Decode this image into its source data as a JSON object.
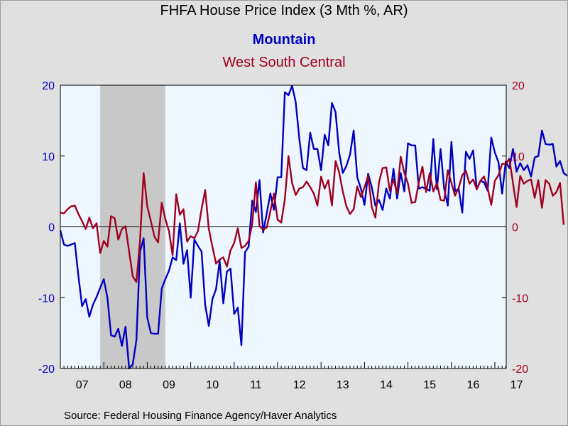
{
  "chart_data": {
    "type": "line",
    "title": "FHFA House Price Index (3 Mth %, AR)",
    "x_start_year": 2007,
    "x_tick_labels": [
      "07",
      "08",
      "09",
      "10",
      "11",
      "12",
      "13",
      "14",
      "15",
      "16",
      "17"
    ],
    "ylim": [
      -20,
      20
    ],
    "y_ticks": [
      -20,
      -10,
      0,
      10,
      20
    ],
    "recession": {
      "start": 2007.917,
      "end": 2009.417
    },
    "grid": false,
    "series": [
      {
        "name": "Mountain",
        "color": "#0000c0",
        "axis": "left",
        "values": [
          -0.5,
          -2.5,
          -2.7,
          -2.5,
          -2.3,
          -7,
          -11.2,
          -10.2,
          -12.7,
          -11,
          -9.9,
          -8.6,
          -7.4,
          -10,
          -15.3,
          -15.5,
          -14.4,
          -16.8,
          -14.1,
          -20,
          -19.4,
          -16,
          -3.5,
          -1.6,
          -12.8,
          -15,
          -15.1,
          -15.1,
          -8.7,
          -7.4,
          -6.2,
          -4.3,
          -4.7,
          0.5,
          -5.2,
          -3.3,
          -10,
          -1.8,
          -2.7,
          -3.5,
          -11,
          -14,
          -10.2,
          -8.8,
          -4.8,
          -10.8,
          -6.3,
          -5.9,
          -12.3,
          -11.4,
          -16.7,
          -3.6,
          -2.8,
          3.7,
          2.1,
          6.6,
          -0.8,
          1.9,
          4.7,
          2.4,
          7,
          7,
          19,
          18.6,
          19.9,
          17.6,
          12.4,
          8.3,
          8,
          13.3,
          11,
          11,
          8,
          13,
          11.5,
          17.5,
          16.2,
          10.5,
          7.6,
          8.6,
          10.2,
          13.6,
          7,
          5.4,
          3.1,
          7.5,
          5.6,
          3,
          3.8,
          2.4,
          5.4,
          4,
          8.2,
          4,
          7.6,
          5,
          11.8,
          11.5,
          11.5,
          5.4,
          5.6,
          5.4,
          5.1,
          12.4,
          5.3,
          11,
          5.4,
          3,
          12,
          5,
          5.4,
          2,
          10.6,
          9.6,
          10.8,
          5.3,
          6.5,
          6.3,
          5.1,
          12.6,
          10.5,
          9.1,
          4.7,
          9.2,
          8.3,
          11,
          7.8,
          9,
          8,
          8.7,
          7.1,
          9.8,
          10,
          13.6,
          11.7,
          11.6,
          11.7,
          8.5,
          9.3,
          7.6,
          7.2
        ]
      },
      {
        "name": "West South Central",
        "color": "#a00020",
        "axis": "right",
        "values": [
          2,
          1.9,
          2.5,
          2.9,
          3,
          1.8,
          0.8,
          -0.3,
          1.3,
          -0.2,
          0.5,
          -3.7,
          -2,
          -2.8,
          1.5,
          1.2,
          -1.8,
          -0.3,
          0.1,
          -3.5,
          -7,
          -7.8,
          -2,
          7.6,
          2.9,
          0.8,
          -1.4,
          -2.2,
          3.4,
          1.1,
          -0.6,
          -4,
          4.6,
          1.7,
          2.5,
          -2.1,
          -1.3,
          -1.6,
          -0.6,
          2.5,
          5.2,
          -0.3,
          -2.8,
          -5.2,
          -4.6,
          -4.3,
          -5.6,
          -3.3,
          -2.3,
          -0.2,
          -3,
          -2.7,
          -2,
          0.4,
          6.3,
          0.1,
          -0.4,
          -0.1,
          2.2,
          4.7,
          1,
          0.6,
          3.9,
          10,
          6.2,
          4.5,
          5.4,
          5.6,
          6.4,
          5.6,
          4.7,
          3,
          7.1,
          5.4,
          6.6,
          3,
          9.3,
          7.7,
          5,
          2.9,
          1.8,
          2.5,
          5.7,
          4.2,
          5.6,
          7.2,
          2.8,
          1.3,
          6.3,
          8.3,
          8.4,
          5.1,
          6.7,
          4.7,
          9.9,
          7.6,
          6.1,
          3.4,
          3.5,
          6.3,
          8.5,
          4.9,
          7.6,
          5,
          6.2,
          3.8,
          3.7,
          8,
          6.2,
          4.4,
          5.5,
          7.3,
          7.9,
          6.1,
          6.7,
          5.3,
          6.5,
          7.1,
          5.5,
          3.1,
          6.5,
          7.3,
          8.9,
          8.9,
          9.6,
          6.2,
          2.8,
          7.2,
          6.1,
          6.5,
          6.7,
          4.1,
          6.6,
          2.7,
          6.6,
          6.1,
          4.4,
          4.9,
          6.2,
          0.3
        ]
      }
    ]
  },
  "source": "Source:  Federal Housing Finance Agency/Haver Analytics",
  "colors": {
    "plot_bg": "#eef6ff",
    "page_bg": "#e0e0e0",
    "recession": "#c8c8c8"
  }
}
